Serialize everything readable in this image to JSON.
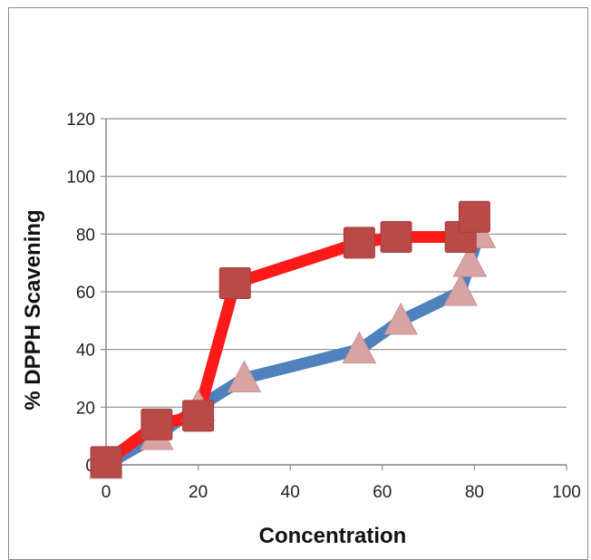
{
  "chart_data": {
    "type": "line",
    "title": "",
    "xlabel": "Concentration",
    "ylabel": "% DPPH Scavening",
    "xlim": [
      0,
      100
    ],
    "ylim": [
      0,
      120
    ],
    "x_ticks": [
      0,
      20,
      40,
      60,
      80,
      100
    ],
    "y_ticks": [
      0,
      20,
      40,
      60,
      80,
      100,
      120
    ],
    "grid": "horizontal",
    "legend": "none",
    "series": [
      {
        "color": "#ff1a1a",
        "marker": "square",
        "marker_color": "#b94a48",
        "x": [
          0,
          11,
          20,
          28,
          55,
          63,
          77,
          80
        ],
        "y": [
          1,
          14,
          17,
          63,
          77,
          79,
          79,
          86
        ]
      },
      {
        "color": "#4f81bd",
        "marker": "triangle",
        "marker_color": "#d9a3a3",
        "x": [
          0,
          11,
          20,
          30,
          55,
          64,
          77,
          79,
          81
        ],
        "y": [
          0,
          10,
          20,
          30,
          40,
          50,
          60,
          70,
          80
        ]
      }
    ]
  }
}
